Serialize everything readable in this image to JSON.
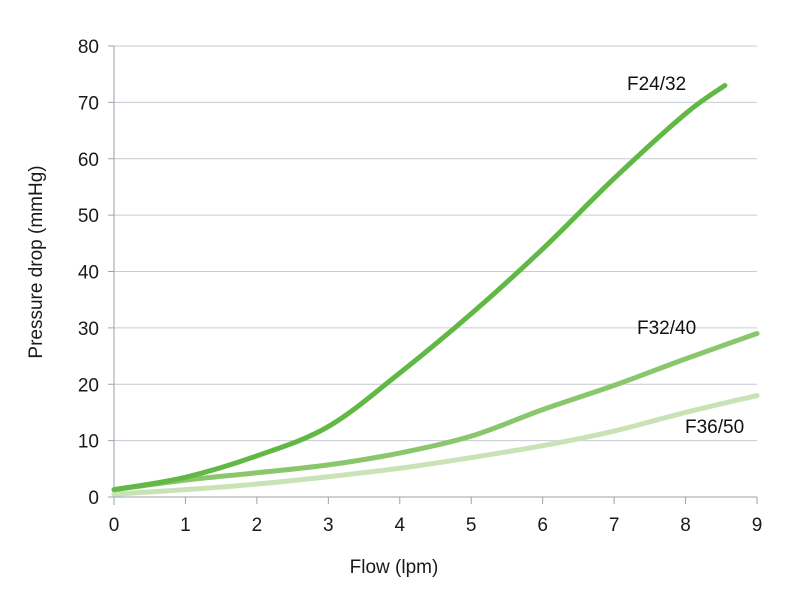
{
  "chart_data": {
    "type": "line",
    "title": "",
    "xlabel": "Flow (lpm)",
    "ylabel": "Pressure drop (mmHg)",
    "xlim": [
      0,
      9
    ],
    "ylim": [
      0,
      80
    ],
    "x_ticks": [
      0,
      1,
      2,
      3,
      4,
      5,
      6,
      7,
      8,
      9
    ],
    "y_ticks": [
      0,
      10,
      20,
      30,
      40,
      50,
      60,
      70,
      80
    ],
    "grid": {
      "horizontal": true,
      "vertical": false
    },
    "legend": "inline labels at line ends",
    "series": [
      {
        "name": "F24/32",
        "color": "#62b845",
        "x": [
          0,
          1,
          2,
          3,
          4,
          5,
          6,
          7,
          8,
          8.55
        ],
        "values": [
          1.3,
          3.5,
          7.3,
          12.5,
          22,
          32.5,
          44,
          56.5,
          68,
          73
        ]
      },
      {
        "name": "F32/40",
        "color": "#8ac66b",
        "x": [
          0,
          1,
          2,
          3,
          4,
          5,
          6,
          7,
          8,
          9
        ],
        "values": [
          1.3,
          3,
          4.3,
          5.7,
          7.8,
          10.8,
          15.5,
          19.8,
          24.5,
          29
        ]
      },
      {
        "name": "F36/50",
        "color": "#c9e3b6",
        "x": [
          0,
          1,
          2,
          3,
          4,
          5,
          6,
          7,
          8,
          9
        ],
        "values": [
          0.5,
          1.3,
          2.3,
          3.6,
          5.1,
          7,
          9.1,
          11.7,
          15,
          18
        ]
      }
    ]
  },
  "labels": {
    "xlabel": "Flow (lpm)",
    "ylabel": "Pressure drop (mmHg)",
    "series_0": "F24/32",
    "series_1": "F32/40",
    "series_2": "F36/50"
  }
}
